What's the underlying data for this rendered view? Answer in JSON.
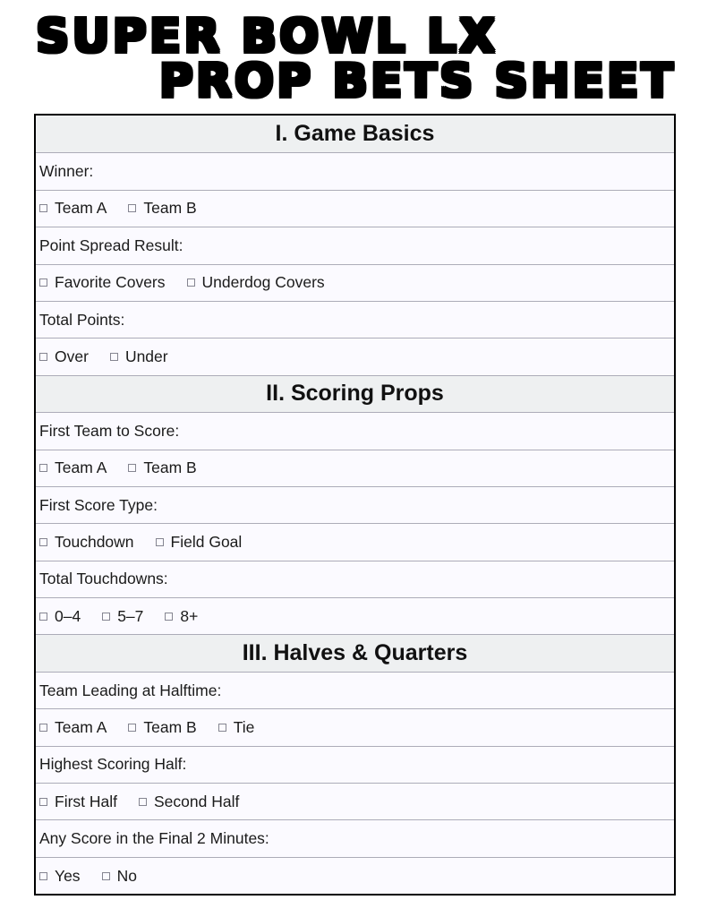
{
  "title": {
    "line1": "SUPER BOWL LX",
    "line2": "PROP BETS SHEET"
  },
  "colors": {
    "header_bg": "#eef0f1",
    "row_bg": "#fbfaff",
    "divider": "#acacb8",
    "outer_border": "#000000",
    "text": "#1b1b1b",
    "checkbox_border": "#858591"
  },
  "icons": {
    "checkbox": "□"
  },
  "sections": [
    {
      "header": "I. Game Basics",
      "items": [
        {
          "label": "Winner:",
          "options": [
            "Team A",
            "Team B"
          ]
        },
        {
          "label": "Point Spread Result:",
          "options": [
            "Favorite Covers",
            "Underdog Covers"
          ]
        },
        {
          "label": "Total Points:",
          "options": [
            "Over",
            "Under"
          ]
        }
      ]
    },
    {
      "header": "II. Scoring Props",
      "items": [
        {
          "label": "First Team to Score:",
          "options": [
            "Team A",
            "Team B"
          ]
        },
        {
          "label": "First Score Type:",
          "options": [
            "Touchdown",
            "Field Goal"
          ]
        },
        {
          "label": "Total Touchdowns:",
          "options": [
            "0–4",
            "5–7",
            "8+"
          ]
        }
      ]
    },
    {
      "header": "III. Halves & Quarters",
      "items": [
        {
          "label": "Team Leading at Halftime:",
          "options": [
            "Team A",
            "Team B",
            "Tie"
          ]
        },
        {
          "label": "Highest Scoring Half:",
          "options": [
            "First Half",
            "Second Half"
          ]
        },
        {
          "label": "Any Score in the Final 2 Minutes:",
          "options": [
            "Yes",
            "No"
          ]
        }
      ]
    }
  ]
}
